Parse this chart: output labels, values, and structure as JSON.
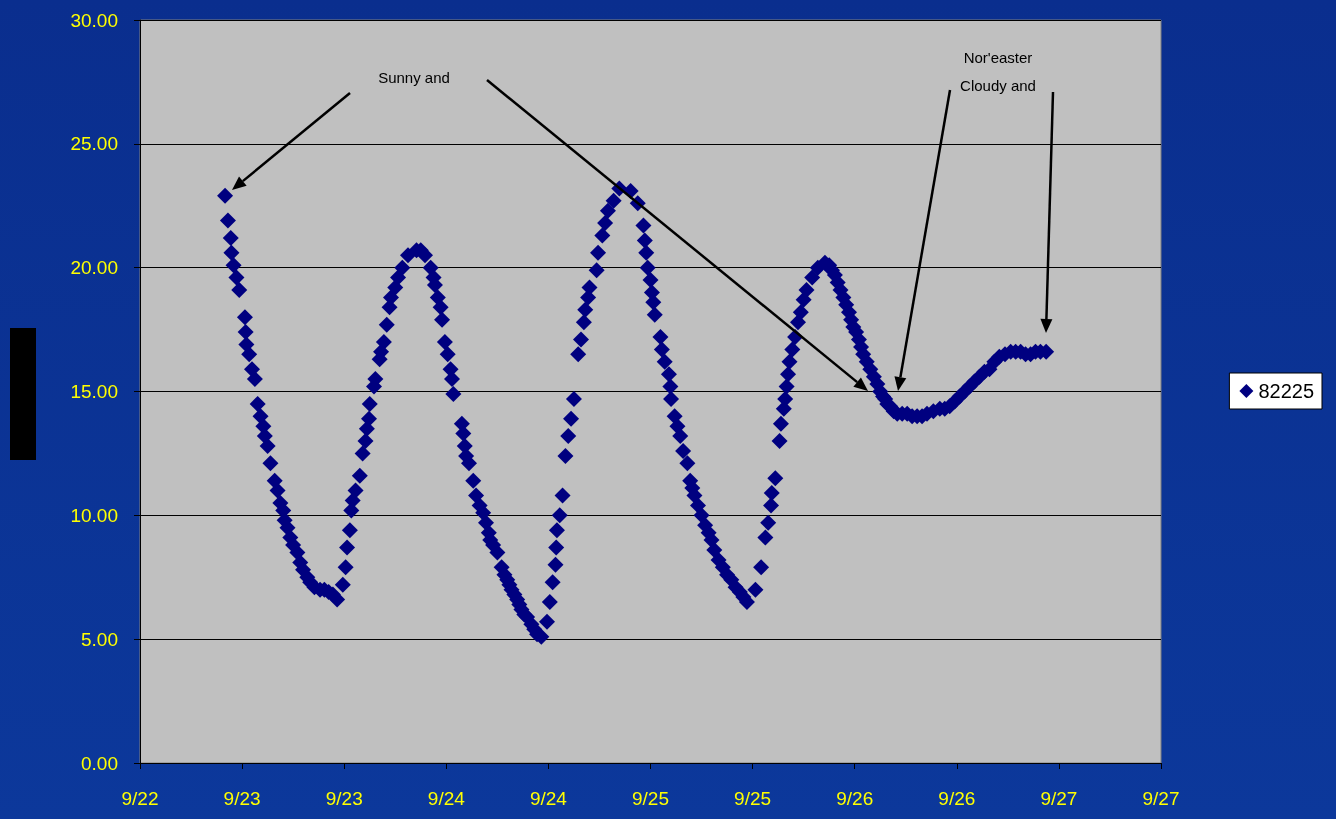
{
  "chart_data": {
    "type": "scatter",
    "x": [
      "--09-22T22:00",
      "--09-22T22:20",
      "--09-22T22:40",
      "--09-22T22:45",
      "--09-22T23:00",
      "--09-22T23:20",
      "--09-22T23:40",
      "--09-23T00:20",
      "--09-23T00:25",
      "--09-23T00:30",
      "--09-23T00:50",
      "--09-23T01:10",
      "--09-23T01:30",
      "--09-23T01:50",
      "--09-23T02:10",
      "--09-23T02:30",
      "--09-23T02:40",
      "--09-23T03:00",
      "--09-23T03:20",
      "--09-23T03:50",
      "--09-23T04:10",
      "--09-23T04:30",
      "--09-23T04:50",
      "--09-23T05:00",
      "--09-23T05:20",
      "--09-23T05:40",
      "--09-23T06:00",
      "--09-23T06:30",
      "--09-23T06:50",
      "--09-23T07:10",
      "--09-23T07:40",
      "--09-23T08:00",
      "--09-23T08:30",
      "--09-23T09:10",
      "--09-23T09:40",
      "--09-23T10:10",
      "--09-23T10:40",
      "--09-23T11:10",
      "--09-23T11:50",
      "--09-23T12:10",
      "--09-23T12:20",
      "--09-23T12:40",
      "--09-23T12:50",
      "--09-23T13:00",
      "--09-23T13:20",
      "--09-23T13:50",
      "--09-23T14:10",
      "--09-23T14:30",
      "--09-23T14:40",
      "--09-23T14:55",
      "--09-23T15:00",
      "--09-23T15:30",
      "--09-23T15:40",
      "--09-23T16:10",
      "--09-23T16:20",
      "--09-23T16:40",
      "--09-23T17:00",
      "--09-23T17:20",
      "--09-23T17:30",
      "--09-23T18:00",
      "--09-23T18:20",
      "--09-23T18:50",
      "--09-23T19:30",
      "--09-23T20:30",
      "--09-23T21:00",
      "--09-23T21:30",
      "--09-23T22:10",
      "--09-23T22:30",
      "--09-23T22:40",
      "--09-23T23:00",
      "--09-23T23:20",
      "--09-23T23:30",
      "--09-23T23:50",
      "--09-24T00:10",
      "--09-24T00:30",
      "--09-24T00:40",
      "--09-24T00:50",
      "--09-24T01:50",
      "--09-24T02:00",
      "--09-24T02:10",
      "--09-24T02:20",
      "--09-24T02:40",
      "--09-24T03:10",
      "--09-24T03:30",
      "--09-24T03:55",
      "--09-24T04:20",
      "--09-24T04:40",
      "--09-24T05:00",
      "--09-24T05:10",
      "--09-24T05:30",
      "--09-24T06:00",
      "--09-24T06:30",
      "--09-24T06:50",
      "--09-24T07:10",
      "--09-24T07:25",
      "--09-24T07:40",
      "--09-24T08:00",
      "--09-24T08:20",
      "--09-24T08:35",
      "--09-24T08:50",
      "--09-24T09:10",
      "--09-24T09:30",
      "--09-24T10:00",
      "--09-24T10:20",
      "--09-24T10:40",
      "--09-24T11:10",
      "--09-24T11:50",
      "--09-24T12:10",
      "--09-24T12:30",
      "--09-24T12:50",
      "--09-24T12:55",
      "--09-24T13:00",
      "--09-24T13:20",
      "--09-24T13:40",
      "--09-24T14:00",
      "--09-24T14:20",
      "--09-24T14:40",
      "--09-24T15:00",
      "--09-24T15:30",
      "--09-24T15:50",
      "--09-24T16:10",
      "--09-24T16:20",
      "--09-24T16:40",
      "--09-24T16:50",
      "--09-24T17:40",
      "--09-24T17:50",
      "--09-24T18:20",
      "--09-24T18:40",
      "--09-24T19:00",
      "--09-24T19:40",
      "--09-24T20:20",
      "--09-24T21:40",
      "--09-24T22:30",
      "--09-24T23:10",
      "--09-24T23:20",
      "--09-24T23:30",
      "--09-24T23:40",
      "--09-25T00:00",
      "--09-25T00:10",
      "--09-25T00:20",
      "--09-25T00:30",
      "--09-25T01:10",
      "--09-25T01:20",
      "--09-25T01:40",
      "--09-25T02:10",
      "--09-25T02:20",
      "--09-25T02:25",
      "--09-25T02:50",
      "--09-25T03:10",
      "--09-25T03:30",
      "--09-25T03:50",
      "--09-25T04:20",
      "--09-25T04:40",
      "--09-25T04:55",
      "--09-25T05:10",
      "--09-25T05:35",
      "--09-25T06:00",
      "--09-25T06:25",
      "--09-25T06:50",
      "--09-25T07:10",
      "--09-25T07:30",
      "--09-25T08:00",
      "--09-25T08:30",
      "--09-25T09:00",
      "--09-25T09:30",
      "--09-25T10:00",
      "--09-25T10:30",
      "--09-25T10:55",
      "--09-25T11:20",
      "--09-25T12:20",
      "--09-25T13:00",
      "--09-25T13:30",
      "--09-25T13:50",
      "--09-25T14:10",
      "--09-25T14:15",
      "--09-25T14:40",
      "--09-25T15:10",
      "--09-25T15:20",
      "--09-25T15:40",
      "--09-25T15:50",
      "--09-25T16:00",
      "--09-25T16:10",
      "--09-25T16:20",
      "--09-25T16:40",
      "--09-25T17:00",
      "--09-25T17:20",
      "--09-25T17:40",
      "--09-25T18:00",
      "--09-25T18:20",
      "--09-25T19:00",
      "--09-25T19:40",
      "--09-25T20:30",
      "--09-25T21:00",
      "--09-25T21:20",
      "--09-25T21:40",
      "--09-25T22:00",
      "--09-25T22:20",
      "--09-25T22:40",
      "--09-25T23:00",
      "--09-25T23:20",
      "--09-25T23:35",
      "--09-25T23:50",
      "--09-26T00:10",
      "--09-26T00:30",
      "--09-26T00:45",
      "--09-26T01:00",
      "--09-26T01:25",
      "--09-26T01:50",
      "--09-26T02:15",
      "--09-26T02:40",
      "--09-26T03:00",
      "--09-26T03:20",
      "--09-26T03:35",
      "--09-26T03:50",
      "--09-26T04:10",
      "--09-26T04:35",
      "--09-26T05:00",
      "--09-26T05:35",
      "--09-26T06:10",
      "--09-26T06:45",
      "--09-26T07:20",
      "--09-26T07:55",
      "--09-26T08:30",
      "--09-26T09:15",
      "--09-26T10:00",
      "--09-26T10:35",
      "--09-26T11:10",
      "--09-26T11:45",
      "--09-26T12:20",
      "--09-26T12:55",
      "--09-26T13:30",
      "--09-26T14:05",
      "--09-26T14:40",
      "--09-26T15:15",
      "--09-26T15:50",
      "--09-26T16:25",
      "--09-26T17:00",
      "--09-26T17:40",
      "--09-26T18:20",
      "--09-26T18:55",
      "--09-26T19:30",
      "--09-26T20:05",
      "--09-26T20:40",
      "--09-26T21:15",
      "--09-26T21:50",
      "--09-26T22:30"
    ],
    "series": [
      {
        "name": "82225",
        "color": "#000080",
        "values": [
          22.9,
          21.9,
          21.2,
          20.6,
          20.1,
          19.6,
          19.1,
          18.0,
          17.4,
          16.9,
          16.5,
          15.9,
          15.5,
          14.5,
          14.0,
          13.6,
          13.2,
          12.8,
          12.1,
          11.4,
          11.0,
          10.5,
          10.2,
          9.8,
          9.5,
          9.1,
          8.8,
          8.5,
          8.1,
          7.8,
          7.5,
          7.3,
          7.1,
          7.0,
          7.0,
          6.9,
          6.8,
          6.6,
          7.2,
          7.9,
          8.7,
          9.4,
          10.2,
          10.6,
          11.0,
          11.6,
          12.5,
          13.0,
          13.5,
          13.9,
          14.5,
          15.2,
          15.5,
          16.3,
          16.6,
          17.0,
          17.7,
          18.4,
          18.8,
          19.2,
          19.6,
          20.0,
          20.5,
          20.7,
          20.7,
          20.5,
          20.0,
          19.6,
          19.3,
          18.8,
          18.4,
          17.9,
          17.0,
          16.5,
          15.9,
          15.5,
          14.9,
          13.7,
          13.3,
          12.8,
          12.4,
          12.1,
          11.4,
          10.8,
          10.4,
          10.1,
          9.7,
          9.3,
          9.0,
          8.8,
          8.5,
          7.9,
          7.6,
          7.4,
          7.2,
          7.0,
          6.8,
          6.6,
          6.4,
          6.2,
          6.0,
          5.9,
          5.6,
          5.4,
          5.2,
          5.1,
          5.7,
          6.5,
          7.3,
          8.0,
          8.7,
          9.4,
          10.0,
          10.8,
          12.4,
          13.2,
          13.9,
          14.7,
          16.5,
          17.1,
          17.8,
          18.3,
          18.8,
          19.2,
          19.9,
          20.6,
          21.3,
          21.8,
          22.3,
          22.7,
          23.2,
          23.1,
          22.6,
          21.7,
          21.1,
          20.6,
          20.0,
          19.5,
          19.0,
          18.6,
          18.1,
          17.2,
          16.7,
          16.2,
          15.7,
          15.2,
          14.7,
          14.0,
          13.6,
          13.2,
          12.6,
          12.1,
          11.4,
          11.1,
          10.8,
          10.4,
          10.0,
          9.6,
          9.3,
          9.0,
          8.6,
          8.2,
          7.9,
          7.6,
          7.4,
          7.1,
          6.9,
          6.7,
          6.5,
          7.0,
          7.9,
          9.1,
          9.7,
          10.4,
          10.9,
          11.5,
          13.0,
          13.7,
          14.3,
          14.7,
          15.2,
          15.7,
          16.2,
          16.7,
          17.2,
          17.8,
          18.2,
          18.7,
          19.1,
          19.6,
          20.0,
          20.2,
          20.1,
          19.9,
          19.7,
          19.4,
          19.1,
          18.8,
          18.5,
          18.2,
          17.9,
          17.6,
          17.4,
          17.1,
          16.8,
          16.5,
          16.2,
          15.9,
          15.6,
          15.3,
          15.0,
          14.8,
          14.7,
          14.5,
          14.4,
          14.2,
          14.1,
          14.1,
          14.1,
          14.0,
          14.0,
          14.0,
          14.1,
          14.2,
          14.3,
          14.3,
          14.4,
          14.6,
          14.8,
          15.0,
          15.2,
          15.4,
          15.6,
          15.8,
          15.9,
          16.2,
          16.4,
          16.5,
          16.6,
          16.6,
          16.6,
          16.5,
          16.5,
          16.6,
          16.6,
          16.6
        ]
      }
    ],
    "xlim": [
      "--09-22T12:00",
      "--09-27T12:00"
    ],
    "xticks": [
      {
        "value": "--09-22T12:00",
        "label": "9/22"
      },
      {
        "value": "--09-23T00:00",
        "label": "9/23"
      },
      {
        "value": "--09-23T12:00",
        "label": "9/23"
      },
      {
        "value": "--09-24T00:00",
        "label": "9/24"
      },
      {
        "value": "--09-24T12:00",
        "label": "9/24"
      },
      {
        "value": "--09-25T00:00",
        "label": "9/25"
      },
      {
        "value": "--09-25T12:00",
        "label": "9/25"
      },
      {
        "value": "--09-26T00:00",
        "label": "9/26"
      },
      {
        "value": "--09-26T12:00",
        "label": "9/26"
      },
      {
        "value": "--09-27T00:00",
        "label": "9/27"
      },
      {
        "value": "--09-27T12:00",
        "label": "9/27"
      }
    ],
    "ylim": [
      0,
      30
    ],
    "yticks": [
      {
        "value": 0,
        "label": "0.00"
      },
      {
        "value": 5,
        "label": "5.00"
      },
      {
        "value": 10,
        "label": "10.00"
      },
      {
        "value": 15,
        "label": "15.00"
      },
      {
        "value": 20,
        "label": "20.00"
      },
      {
        "value": 25,
        "label": "25.00"
      },
      {
        "value": 30,
        "label": "30.00"
      }
    ],
    "grid": "y",
    "legend": "right",
    "marker": "diamond",
    "annotations": [
      "Sunny and",
      "Nor'easter Cloudy and"
    ]
  }
}
